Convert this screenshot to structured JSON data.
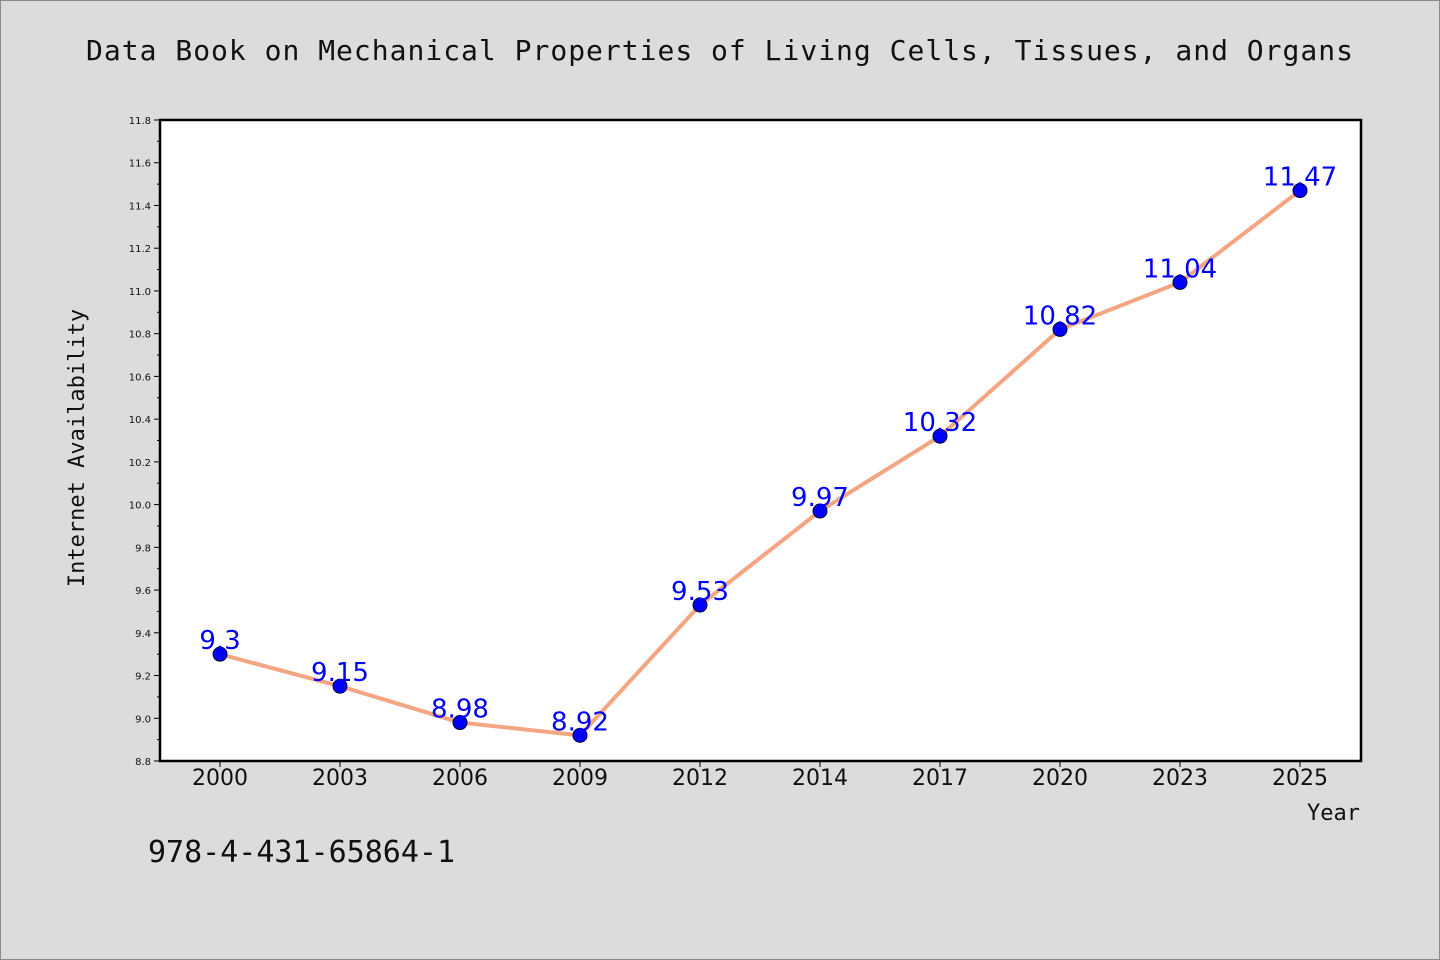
{
  "title": "Data Book on Mechanical Properties of Living Cells, Tissues, and Organs",
  "isbn": "978-4-431-65864-1",
  "colors": {
    "line": "#f4a582",
    "marker": "#0000ff",
    "label": "#0000ff",
    "background": "#dcdcdc",
    "plot_bg": "#ffffff"
  },
  "chart_data": {
    "type": "line",
    "title": "Data Book on Mechanical Properties of Living Cells, Tissues, and Organs",
    "xlabel": "Year",
    "ylabel": "Internet Availability",
    "categories": [
      "2000",
      "2003",
      "2006",
      "2009",
      "2012",
      "2014",
      "2017",
      "2020",
      "2023",
      "2025"
    ],
    "values": [
      9.3,
      9.15,
      8.98,
      8.92,
      9.53,
      9.97,
      10.32,
      10.82,
      11.04,
      11.47
    ],
    "data_labels": [
      "9.3",
      "9.15",
      "8.98",
      "8.92",
      "9.53",
      "9.97",
      "10.32",
      "10.82",
      "11.04",
      "11.47"
    ],
    "ylim": [
      8.8,
      11.8
    ],
    "yticks": [
      "8.8",
      "9.0",
      "9.2",
      "9.4",
      "9.6",
      "9.8",
      "10.0",
      "10.2",
      "10.4",
      "10.6",
      "10.8",
      "11.0",
      "11.2",
      "11.4",
      "11.6",
      "11.8"
    ],
    "grid": false,
    "legend": "none"
  }
}
